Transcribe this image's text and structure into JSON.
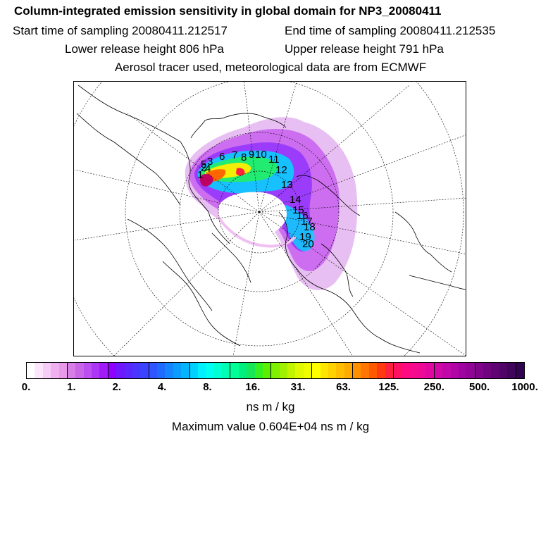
{
  "header": {
    "title": "Column-integrated emission sensitivity in global domain for NP3_20080411",
    "start_time": "Start time of sampling 20080411.212517",
    "end_time": "End time of sampling 20080411.212535",
    "lower_release": "Lower release height  806 hPa",
    "upper_release": "Upper release height  791 hPa",
    "tracer_info": "Aerosol tracer used, meteorological data are from ECMWF"
  },
  "map": {
    "projection": "north polar stereographic",
    "trajectory_labels": [
      "1",
      "2",
      "3",
      "4",
      "5",
      "6",
      "7",
      "8",
      "9",
      "10",
      "11",
      "12",
      "13",
      "14",
      "15",
      "16",
      "17",
      "18",
      "19",
      "20"
    ]
  },
  "colorbar": {
    "tick_labels": [
      "0.",
      "1.",
      "2.",
      "4.",
      "8.",
      "16.",
      "31.",
      "63.",
      "125.",
      "250.",
      "500.",
      "1000."
    ],
    "colors": [
      "#ffffff",
      "#fce6fc",
      "#f7cdf7",
      "#f0b0f0",
      "#e89ae8",
      "#d77fe6",
      "#c966e8",
      "#bb4ff0",
      "#ad35f4",
      "#9f1cf8",
      "#8f00ff",
      "#6f18ff",
      "#5a28ff",
      "#4a36ff",
      "#3a44ff",
      "#2e55ff",
      "#1f6aff",
      "#1484ff",
      "#0a9cff",
      "#04b4ff",
      "#00d2ff",
      "#00f0ff",
      "#00fff0",
      "#00ffd2",
      "#00ffb4",
      "#00ff96",
      "#00f080",
      "#18e858",
      "#34f020",
      "#5af000",
      "#7ef000",
      "#a0f000",
      "#c2f400",
      "#e0f800",
      "#f0fc00",
      "#ffff00",
      "#ffe600",
      "#ffd200",
      "#ffbe00",
      "#ffaa00",
      "#ff9100",
      "#ff7600",
      "#ff5a00",
      "#ff3a10",
      "#ff2040",
      "#ff1060",
      "#ff0a80",
      "#f80a8c",
      "#ee0a96",
      "#e0089e",
      "#d208a6",
      "#c008a8",
      "#b006a6",
      "#a004a0",
      "#900496",
      "#80048a",
      "#700480",
      "#600474",
      "#500468",
      "#40045a",
      "#300450"
    ],
    "units": "ns m / kg"
  },
  "footer": {
    "max_value": "Maximum value  0.604E+04 ns m / kg"
  }
}
